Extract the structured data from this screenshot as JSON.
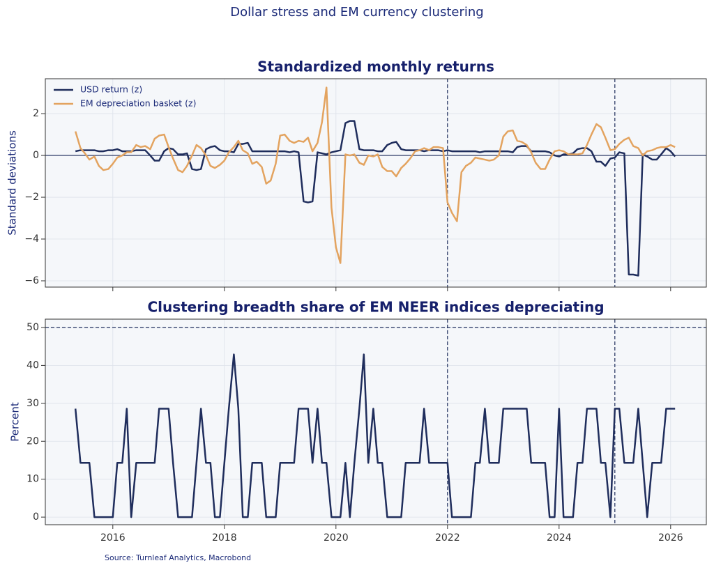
{
  "title": "Dollar stress and EM currency clustering",
  "source": "Source: Turnleaf Analytics, Macrobond",
  "chart_data": [
    {
      "type": "line",
      "title": "Standardized monthly returns",
      "y_label": "Standard deviations",
      "x": [
        2015.33,
        2015.42,
        2015.5,
        2015.58,
        2015.67,
        2015.75,
        2015.83,
        2015.92,
        2016,
        2016.08,
        2016.17,
        2016.25,
        2016.33,
        2016.42,
        2016.5,
        2016.58,
        2016.67,
        2016.75,
        2016.83,
        2016.92,
        2017,
        2017.08,
        2017.17,
        2017.25,
        2017.33,
        2017.42,
        2017.5,
        2017.58,
        2017.67,
        2017.75,
        2017.83,
        2017.92,
        2018,
        2018.08,
        2018.17,
        2018.25,
        2018.33,
        2018.42,
        2018.5,
        2018.58,
        2018.67,
        2018.75,
        2018.83,
        2018.92,
        2019,
        2019.08,
        2019.17,
        2019.25,
        2019.33,
        2019.42,
        2019.5,
        2019.58,
        2019.67,
        2019.75,
        2019.83,
        2019.92,
        2020,
        2020.08,
        2020.17,
        2020.25,
        2020.33,
        2020.42,
        2020.5,
        2020.58,
        2020.67,
        2020.75,
        2020.83,
        2020.92,
        2021,
        2021.08,
        2021.17,
        2021.25,
        2021.33,
        2021.42,
        2021.5,
        2021.58,
        2021.67,
        2021.75,
        2021.83,
        2021.92,
        2022,
        2022.08,
        2022.17,
        2022.25,
        2022.33,
        2022.42,
        2022.5,
        2022.58,
        2022.67,
        2022.75,
        2022.83,
        2022.92,
        2023,
        2023.08,
        2023.17,
        2023.25,
        2023.33,
        2023.42,
        2023.5,
        2023.58,
        2023.67,
        2023.75,
        2023.83,
        2023.92,
        2024,
        2024.08,
        2024.17,
        2024.25,
        2024.33,
        2024.42,
        2024.5,
        2024.58,
        2024.67,
        2024.75,
        2024.83,
        2024.92,
        2025,
        2025.08,
        2025.17,
        2025.25,
        2025.33,
        2025.42,
        2025.5,
        2025.58,
        2025.67,
        2025.75,
        2025.83,
        2025.92,
        2026,
        2026.08
      ],
      "series": [
        {
          "name": "USD return (z)",
          "color": "#1f2d5c",
          "values": [
            0.2,
            0.25,
            0.25,
            0.25,
            0.25,
            0.2,
            0.2,
            0.25,
            0.25,
            0.3,
            0.2,
            0.2,
            0.2,
            0.25,
            0.25,
            0.25,
            0.0,
            -0.25,
            -0.25,
            0.2,
            0.35,
            0.3,
            0.05,
            0.05,
            0.1,
            -0.65,
            -0.7,
            -0.65,
            0.3,
            0.4,
            0.45,
            0.25,
            0.2,
            0.2,
            0.15,
            0.55,
            0.55,
            0.6,
            0.2,
            0.2,
            0.2,
            0.2,
            0.2,
            0.2,
            0.2,
            0.2,
            0.15,
            0.2,
            0.15,
            -2.2,
            -2.25,
            -2.2,
            0.15,
            0.1,
            0.05,
            0.15,
            0.2,
            0.25,
            1.55,
            1.65,
            1.65,
            0.3,
            0.25,
            0.25,
            0.25,
            0.2,
            0.2,
            0.5,
            0.6,
            0.65,
            0.3,
            0.25,
            0.25,
            0.25,
            0.25,
            0.2,
            0.25,
            0.25,
            0.25,
            0.2,
            0.25,
            0.2,
            0.2,
            0.2,
            0.2,
            0.2,
            0.2,
            0.15,
            0.2,
            0.2,
            0.2,
            0.2,
            0.2,
            0.2,
            0.15,
            0.4,
            0.45,
            0.45,
            0.2,
            0.2,
            0.2,
            0.2,
            0.15,
            0.0,
            -0.05,
            0.05,
            0.05,
            0.1,
            0.3,
            0.35,
            0.35,
            0.2,
            -0.3,
            -0.3,
            -0.5,
            -0.15,
            -0.1,
            0.15,
            0.1,
            -5.7,
            -5.7,
            -5.75,
            0.05,
            -0.05,
            -0.2,
            -0.2,
            0.05,
            0.35,
            0.2,
            -0.05
          ]
        },
        {
          "name": "EM depreciation basket (z)",
          "color": "#e3a35f",
          "values": [
            1.15,
            0.35,
            0.1,
            -0.2,
            -0.05,
            -0.5,
            -0.7,
            -0.65,
            -0.4,
            -0.1,
            0.0,
            0.15,
            0.15,
            0.5,
            0.4,
            0.45,
            0.3,
            0.8,
            0.95,
            1.0,
            0.4,
            -0.15,
            -0.7,
            -0.8,
            -0.5,
            0.0,
            0.5,
            0.35,
            0.0,
            -0.5,
            -0.6,
            -0.45,
            -0.25,
            0.15,
            0.4,
            0.7,
            0.25,
            0.1,
            -0.4,
            -0.3,
            -0.55,
            -1.35,
            -1.2,
            -0.4,
            0.95,
            1.0,
            0.7,
            0.6,
            0.7,
            0.65,
            0.85,
            0.2,
            0.6,
            1.6,
            3.25,
            -2.5,
            -4.4,
            -5.15,
            0.05,
            0.0,
            0.05,
            -0.35,
            -0.45,
            0.0,
            -0.05,
            0.05,
            -0.55,
            -0.75,
            -0.75,
            -1.0,
            -0.6,
            -0.4,
            -0.15,
            0.2,
            0.25,
            0.35,
            0.25,
            0.4,
            0.4,
            0.35,
            -2.25,
            -2.75,
            -3.15,
            -0.8,
            -0.5,
            -0.35,
            -0.1,
            -0.15,
            -0.2,
            -0.25,
            -0.2,
            0.0,
            0.9,
            1.15,
            1.2,
            0.7,
            0.65,
            0.5,
            0.15,
            -0.35,
            -0.65,
            -0.65,
            -0.2,
            0.2,
            0.25,
            0.2,
            0.05,
            0.05,
            0.05,
            0.1,
            0.5,
            1.0,
            1.5,
            1.35,
            0.85,
            0.25,
            0.3,
            0.55,
            0.75,
            0.85,
            0.45,
            0.35,
            0.0,
            0.2,
            0.25,
            0.35,
            0.4,
            0.4,
            0.5,
            0.4
          ]
        }
      ],
      "xlim": [
        2014.79,
        2026.64
      ],
      "xticks": [
        2016,
        2018,
        2020,
        2022,
        2024,
        2026
      ],
      "xtick_labels": false,
      "ylim": [
        -6.3,
        3.67
      ],
      "yticks": [
        {
          "value": -6,
          "label": "−6"
        },
        {
          "value": -4,
          "label": "−4"
        },
        {
          "value": -2,
          "label": "−2"
        },
        0,
        2
      ],
      "grid": true,
      "zero_line": true,
      "vlines": [
        2022,
        2025
      ],
      "hlines": [],
      "legend": "upper left"
    },
    {
      "type": "line",
      "title": "Clustering breadth share of EM NEER indices depreciating",
      "y_label": "Percent",
      "x": [
        2015.33,
        2015.42,
        2015.5,
        2015.58,
        2015.67,
        2015.75,
        2015.83,
        2015.92,
        2016,
        2016.08,
        2016.17,
        2016.25,
        2016.33,
        2016.42,
        2016.5,
        2016.58,
        2016.67,
        2016.75,
        2016.83,
        2016.92,
        2017,
        2017.08,
        2017.17,
        2017.25,
        2017.33,
        2017.42,
        2017.5,
        2017.58,
        2017.67,
        2017.75,
        2017.83,
        2017.92,
        2018,
        2018.08,
        2018.17,
        2018.25,
        2018.33,
        2018.42,
        2018.5,
        2018.58,
        2018.67,
        2018.75,
        2018.83,
        2018.92,
        2019,
        2019.08,
        2019.17,
        2019.25,
        2019.33,
        2019.42,
        2019.5,
        2019.58,
        2019.67,
        2019.75,
        2019.83,
        2019.92,
        2020,
        2020.08,
        2020.17,
        2020.25,
        2020.33,
        2020.42,
        2020.5,
        2020.58,
        2020.67,
        2020.75,
        2020.83,
        2020.92,
        2021,
        2021.08,
        2021.17,
        2021.25,
        2021.33,
        2021.42,
        2021.5,
        2021.58,
        2021.67,
        2021.75,
        2021.83,
        2021.92,
        2022,
        2022.08,
        2022.17,
        2022.25,
        2022.33,
        2022.42,
        2022.5,
        2022.58,
        2022.67,
        2022.75,
        2022.83,
        2022.92,
        2023,
        2023.08,
        2023.17,
        2023.25,
        2023.33,
        2023.42,
        2023.5,
        2023.58,
        2023.67,
        2023.75,
        2023.83,
        2023.92,
        2024,
        2024.08,
        2024.17,
        2024.25,
        2024.33,
        2024.42,
        2024.5,
        2024.58,
        2024.67,
        2024.75,
        2024.83,
        2024.92,
        2025,
        2025.08,
        2025.17,
        2025.25,
        2025.33,
        2025.42,
        2025.5,
        2025.58,
        2025.67,
        2025.75,
        2025.83,
        2025.92,
        2026,
        2026.08
      ],
      "series": [
        {
          "color": "#1f2d5c",
          "values": [
            28.6,
            14.3,
            14.3,
            14.3,
            0,
            0,
            0,
            0,
            0,
            14.3,
            14.3,
            28.6,
            0,
            14.3,
            14.3,
            14.3,
            14.3,
            14.3,
            28.6,
            28.6,
            28.6,
            14.3,
            0,
            0,
            0,
            0,
            14.3,
            28.6,
            14.3,
            14.3,
            0,
            0,
            14.3,
            28.6,
            42.9,
            28.6,
            0,
            0,
            14.3,
            14.3,
            14.3,
            0,
            0,
            0,
            14.3,
            14.3,
            14.3,
            14.3,
            28.6,
            28.6,
            28.6,
            14.3,
            28.6,
            14.3,
            14.3,
            0,
            0,
            0,
            14.3,
            0,
            14.3,
            28.6,
            42.9,
            14.3,
            28.6,
            14.3,
            14.3,
            0,
            0,
            0,
            0,
            14.3,
            14.3,
            14.3,
            14.3,
            28.6,
            14.3,
            14.3,
            14.3,
            14.3,
            14.3,
            0,
            0,
            0,
            0,
            0,
            14.3,
            14.3,
            28.6,
            14.3,
            14.3,
            14.3,
            28.6,
            28.6,
            28.6,
            28.6,
            28.6,
            28.6,
            14.3,
            14.3,
            14.3,
            14.3,
            0,
            0,
            28.6,
            0,
            0,
            0,
            14.3,
            14.3,
            28.6,
            28.6,
            28.6,
            14.3,
            14.3,
            0,
            28.6,
            28.6,
            14.3,
            14.3,
            14.3,
            28.6,
            14.3,
            0,
            14.3,
            14.3,
            14.3,
            28.6,
            28.6,
            28.6
          ]
        }
      ],
      "xlim": [
        2014.79,
        2026.64
      ],
      "xticks": [
        2016,
        2018,
        2020,
        2022,
        2024,
        2026
      ],
      "xtick_labels": true,
      "ylim": [
        -2.0,
        52.2
      ],
      "yticks": [
        0,
        10,
        20,
        30,
        40,
        50
      ],
      "grid": true,
      "zero_line": false,
      "vlines": [
        2022,
        2025
      ],
      "hlines": [
        50
      ]
    }
  ]
}
